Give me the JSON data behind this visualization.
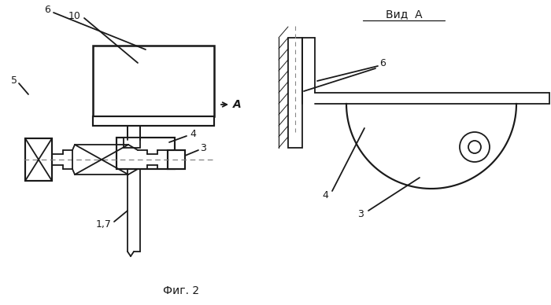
{
  "title": "Фиг. 2",
  "vid_a_label": "Вид  А",
  "bg_color": "#ffffff",
  "line_color": "#1a1a1a",
  "fig_width": 7.0,
  "fig_height": 3.88
}
